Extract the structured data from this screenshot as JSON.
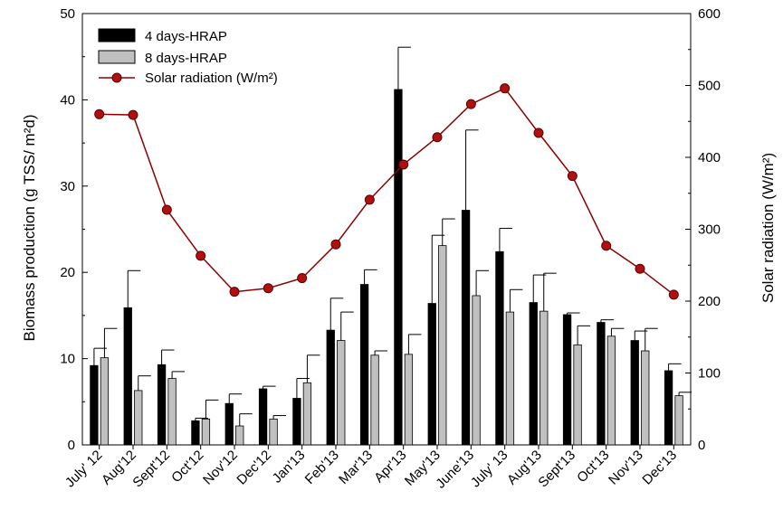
{
  "chart_data": {
    "type": "bar",
    "categories": [
      "July' 12",
      "Aug'12",
      "Sept'12",
      "Oct'12",
      "Nov'12",
      "Dec'12",
      "Jan'13",
      "Feb'13",
      "Mar'13",
      "Apr'13",
      "May'13",
      "June'13",
      "July' 13",
      "Aug'13",
      "Sept'13",
      "Oct'13",
      "Nov'13",
      "Dec'13"
    ],
    "series": [
      {
        "name": "4 days-HRAP",
        "kind": "bar",
        "axis": "left",
        "color": "#000000",
        "values": [
          9.2,
          15.9,
          9.3,
          2.8,
          4.8,
          6.5,
          5.4,
          13.3,
          18.6,
          41.2,
          16.4,
          27.2,
          22.4,
          16.5,
          15.1,
          14.2,
          12.1,
          8.6
        ],
        "errors": [
          2.0,
          4.3,
          1.7,
          0.3,
          1.1,
          0.3,
          2.3,
          3.7,
          1.7,
          4.9,
          7.9,
          9.3,
          2.7,
          3.2,
          0.2,
          0.3,
          1.1,
          0.8
        ]
      },
      {
        "name": "8 days-HRAP",
        "kind": "bar",
        "axis": "left",
        "color": "#c0c0c0",
        "values": [
          10.1,
          6.3,
          7.7,
          3.0,
          2.2,
          3.0,
          7.2,
          12.1,
          10.4,
          10.5,
          23.1,
          17.3,
          15.4,
          15.5,
          11.6,
          12.6,
          10.9,
          5.7
        ],
        "errors": [
          3.4,
          1.7,
          0.8,
          2.2,
          1.4,
          0.4,
          3.2,
          3.3,
          0.5,
          2.3,
          3.1,
          2.9,
          2.6,
          4.4,
          2.2,
          0.9,
          2.6,
          0.4
        ]
      },
      {
        "name": "Solar radiation (W/m²)",
        "kind": "line",
        "axis": "right",
        "color": "#8b0000",
        "values": [
          460,
          459,
          327,
          263,
          213,
          218,
          232,
          279,
          341,
          390,
          428,
          474,
          496,
          434,
          374,
          277,
          245,
          209
        ]
      }
    ],
    "ylabel": "Biomass production (g TSS/ m²d)",
    "y2label": "Solar radiation (W/m²)",
    "ylim": [
      0,
      50
    ],
    "y2lim": [
      0,
      600
    ],
    "yticks": [
      0,
      10,
      20,
      30,
      40,
      50
    ],
    "y2ticks": [
      0,
      100,
      200,
      300,
      400,
      500,
      600
    ],
    "grid": false,
    "legend_position": "top-left"
  }
}
